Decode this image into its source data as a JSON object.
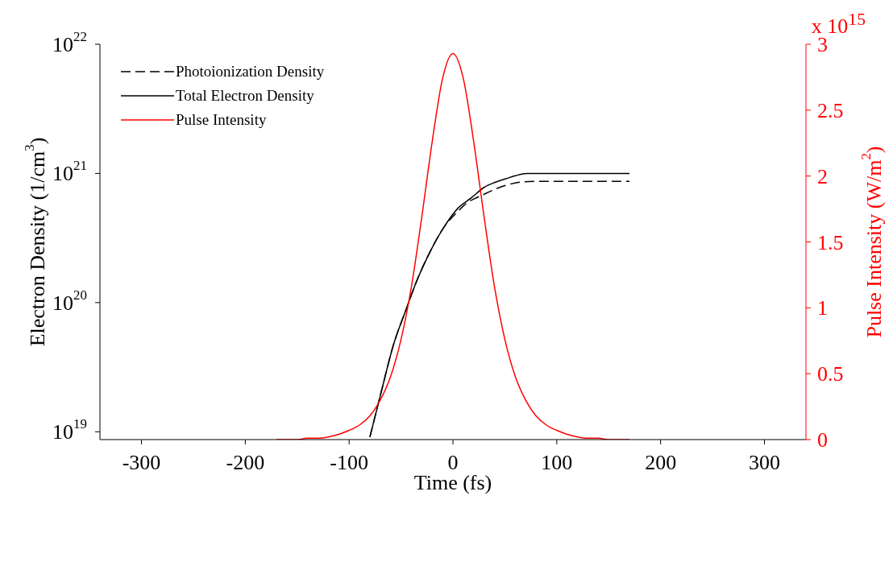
{
  "chart_data": {
    "type": "line",
    "xlabel": "Time (fs)",
    "ylabel": "Electron Density (1/cm$^{3}$)",
    "y2label": "Pulse Intensity (W/m$^{2}$)",
    "annotations": [
      "x 10$^{15}$"
    ],
    "xlim": [
      -340,
      340
    ],
    "xticks": [
      -300,
      -200,
      -100,
      0,
      100,
      200,
      300
    ],
    "ylim": [
      8.7e+18,
      1e+22
    ],
    "yticks": [
      {
        "value": 1e+19,
        "label": "10$^{19}$"
      },
      {
        "value": 1e+20,
        "label": "10$^{20}$"
      },
      {
        "value": 1e+21,
        "label": "10$^{21}$"
      },
      {
        "value": 1e+22,
        "label": "10$^{22}$"
      }
    ],
    "y2lim": [
      0,
      3
    ],
    "y2ticks": [
      0,
      0.5,
      1,
      1.5,
      2,
      2.5,
      3
    ],
    "log": "y",
    "legend": "top left",
    "marker": "none",
    "series": [
      {
        "name": "Photoionization Density",
        "color": "#000000",
        "line_style": "dashed",
        "x": [
          -80,
          -70,
          -57,
          -45,
          -36,
          -24,
          -9,
          5,
          10,
          30,
          51,
          68,
          90,
          120,
          170
        ],
        "values": [
          9.1e+18,
          1.9e+19,
          4.8e+19,
          8.9e+19,
          1.4e+20,
          2.3e+20,
          3.8e+20,
          5.1e+20,
          5.6e+20,
          6.9e+20,
          8.1e+20,
          8.6e+20,
          8.7e+20,
          8.7e+20,
          8.7e+20
        ]
      },
      {
        "name": "Total Electron Density",
        "color": "#000000",
        "line_style": "solid",
        "x": [
          -80,
          -70,
          -57,
          -45,
          -36,
          -24,
          -9,
          5,
          18,
          30,
          40,
          51,
          60,
          71,
          90,
          120,
          170
        ],
        "values": [
          9.1e+18,
          1.9e+19,
          4.8e+19,
          8.9e+19,
          1.4e+20,
          2.3e+20,
          3.8e+20,
          5.4e+20,
          6.5e+20,
          7.8e+20,
          8.5e+20,
          9.1e+20,
          9.6e+20,
          1e+21,
          1e+21,
          1e+21,
          1e+21
        ]
      },
      {
        "name": "Pulse Intensity",
        "color": "#ff0000",
        "line_style": "solid",
        "axis": "y2",
        "x": [
          -170,
          -150,
          -140,
          -130,
          -120,
          -110,
          -100,
          -90,
          -80,
          -70,
          -60,
          -50,
          -40,
          -30,
          -20,
          -10,
          0,
          10,
          20,
          30,
          40,
          50,
          60,
          70,
          80,
          90,
          100,
          110,
          120,
          130,
          140,
          150,
          170
        ],
        "values": [
          0,
          0,
          0.01,
          0.01,
          0.02,
          0.04,
          0.07,
          0.11,
          0.18,
          0.3,
          0.48,
          0.76,
          1.16,
          1.69,
          2.26,
          2.74,
          2.93,
          2.74,
          2.26,
          1.69,
          1.16,
          0.76,
          0.48,
          0.3,
          0.18,
          0.11,
          0.07,
          0.04,
          0.02,
          0.01,
          0.01,
          0,
          0
        ]
      }
    ]
  }
}
